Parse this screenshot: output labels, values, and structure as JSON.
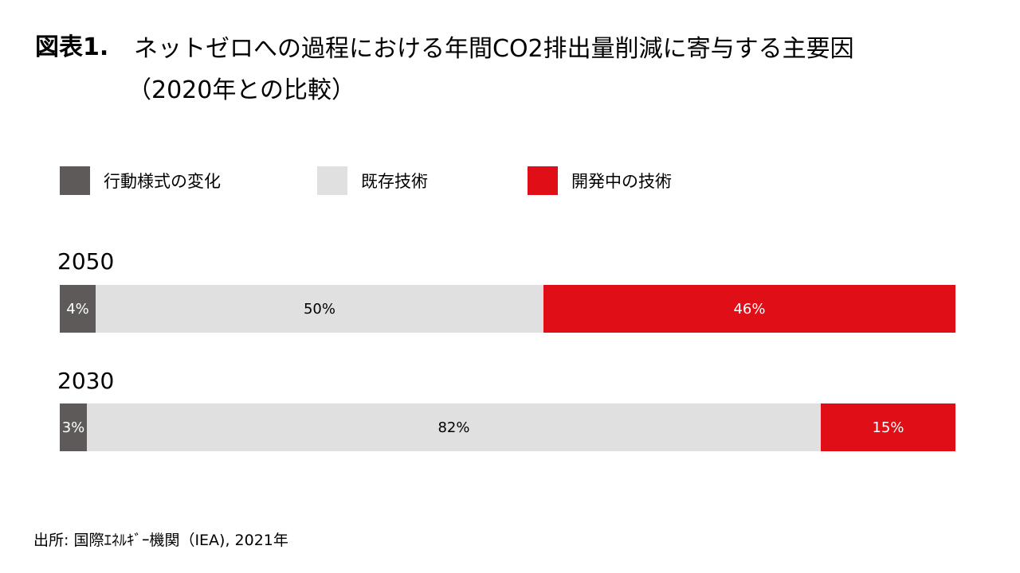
{
  "title": {
    "prefix": "図表1.",
    "line1": "ネットゼロへの過程における年間CO2排出量削減に寄与する主要因",
    "line2": "（2020年との比較）"
  },
  "colors": {
    "behavior": "#5e5a59",
    "existing": "#e0e0e0",
    "developing": "#e00f17",
    "label_on_dark": "#ffffff",
    "label_on_light": "#000000"
  },
  "legend": [
    "行動様式の変化",
    "既存技術",
    "開発中の技術"
  ],
  "chart_data": {
    "type": "bar",
    "orientation": "horizontal",
    "stacked": true,
    "unit": "%",
    "title": "ネットゼロへの過程における年間CO2排出量削減に寄与する主要因（2020年との比較）",
    "categories": [
      "2050",
      "2030"
    ],
    "series": [
      {
        "name": "行動様式の変化",
        "values": [
          4,
          3
        ],
        "labels": [
          "4%",
          "3%"
        ]
      },
      {
        "name": "既存技術",
        "values": [
          50,
          82
        ],
        "labels": [
          "50%",
          "82%"
        ]
      },
      {
        "name": "開発中の技術",
        "values": [
          46,
          15
        ],
        "labels": [
          "46%",
          "15%"
        ]
      }
    ],
    "legend_position": "top",
    "grid": false,
    "xlim": [
      0,
      100
    ]
  },
  "source": "出所: 国際ｴﾈﾙｷﾞｰ機関（IEA), 2021年"
}
